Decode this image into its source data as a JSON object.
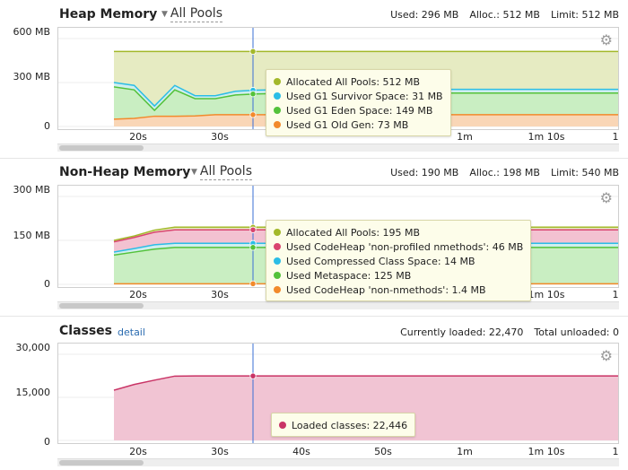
{
  "colors": {
    "allocated": "#a3b82a",
    "survivor": "#2bbde6",
    "eden": "#53c23a",
    "oldgen": "#f28a2b",
    "codeheap_profiled": "#d9446f",
    "compressed_class": "#2bbde6",
    "metaspace": "#53c23a",
    "codeheap_nonmethods": "#f28a2b",
    "classes": "#c93466",
    "crosshair": "#3a6fd6"
  },
  "x_axis_ticks": [
    "20s",
    "30s",
    "40s",
    "50s",
    "1m",
    "1m 10s",
    "1"
  ],
  "heap": {
    "title": "Heap Memory",
    "pool": "All Pools",
    "used": "Used: 296 MB",
    "alloc": "Alloc.: 512 MB",
    "limit": "Limit: 512 MB",
    "yticks": [
      "600 MB",
      "300 MB",
      "0"
    ],
    "tooltip": [
      {
        "label": "Allocated All Pools: 512 MB",
        "color": "#a3b82a"
      },
      {
        "label": "Used G1 Survivor Space: 31 MB",
        "color": "#2bbde6"
      },
      {
        "label": "Used G1 Eden Space: 149 MB",
        "color": "#53c23a"
      },
      {
        "label": "Used G1 Old Gen: 73 MB",
        "color": "#f28a2b"
      }
    ]
  },
  "nonheap": {
    "title": "Non-Heap Memory",
    "pool": "All Pools",
    "used": "Used: 190 MB",
    "alloc": "Alloc.: 198 MB",
    "limit": "Limit: 540 MB",
    "yticks": [
      "300 MB",
      "150 MB",
      "0"
    ],
    "tooltip": [
      {
        "label": "Allocated All Pools: 195 MB",
        "color": "#a3b82a"
      },
      {
        "label": "Used CodeHeap 'non-profiled nmethods': 46 MB",
        "color": "#d9446f"
      },
      {
        "label": "Used Compressed Class Space: 14 MB",
        "color": "#2bbde6"
      },
      {
        "label": "Used Metaspace: 125 MB",
        "color": "#53c23a"
      },
      {
        "label": "Used CodeHeap 'non-nmethods': 1.4 MB",
        "color": "#f28a2b"
      }
    ]
  },
  "classes": {
    "title": "Classes",
    "detail_link": "detail",
    "currently_loaded": "Currently loaded: 22,470",
    "total_unloaded": "Total unloaded: 0",
    "yticks": [
      "30,000",
      "15,000",
      "0"
    ],
    "tooltip": [
      {
        "label": "Loaded classes: 22,446",
        "color": "#c93466"
      }
    ]
  },
  "chart_data": [
    {
      "type": "area",
      "title": "Heap Memory",
      "ylabel": "MB",
      "ylim": [
        0,
        600
      ],
      "x": [
        0,
        1,
        2,
        3,
        4,
        5,
        6,
        7,
        8,
        9,
        10,
        11,
        12,
        13,
        14,
        15,
        16,
        17,
        18,
        19,
        20,
        21,
        22,
        23,
        24,
        25
      ],
      "series": [
        {
          "name": "Allocated All Pools",
          "values": [
            512,
            512,
            512,
            512,
            512,
            512,
            512,
            512,
            512,
            512,
            512,
            512,
            512,
            512,
            512,
            512,
            512,
            512,
            512,
            512,
            512,
            512,
            512,
            512,
            512,
            512
          ]
        },
        {
          "name": "Used G1 Survivor Space",
          "values": [
            300,
            280,
            140,
            280,
            210,
            210,
            240,
            248,
            250,
            252,
            252,
            253,
            253,
            253,
            253,
            253,
            253,
            253,
            253,
            253,
            253,
            253,
            253,
            253,
            253,
            253
          ]
        },
        {
          "name": "Used G1 Eden Space",
          "values": [
            270,
            250,
            110,
            250,
            190,
            190,
            215,
            222,
            225,
            227,
            228,
            228,
            228,
            228,
            228,
            228,
            228,
            228,
            228,
            228,
            228,
            228,
            228,
            228,
            228,
            228
          ]
        },
        {
          "name": "Used G1 Old Gen",
          "values": [
            50,
            55,
            70,
            70,
            72,
            80,
            80,
            80,
            80,
            80,
            80,
            80,
            80,
            80,
            80,
            80,
            80,
            80,
            80,
            80,
            80,
            80,
            80,
            80,
            80,
            80
          ]
        }
      ]
    },
    {
      "type": "area",
      "title": "Non-Heap Memory",
      "ylabel": "MB",
      "ylim": [
        0,
        300
      ],
      "x": [
        0,
        1,
        2,
        3,
        4,
        5,
        6,
        7,
        8,
        9,
        10,
        11,
        12,
        13,
        14,
        15,
        16,
        17,
        18,
        19,
        20,
        21,
        22,
        23,
        24,
        25
      ],
      "series": [
        {
          "name": "Allocated All Pools",
          "values": [
            150,
            165,
            185,
            195,
            195,
            195,
            195,
            195,
            195,
            195,
            195,
            195,
            195,
            195,
            195,
            195,
            195,
            195,
            195,
            195,
            195,
            195,
            195,
            195,
            195,
            195
          ]
        },
        {
          "name": "Used CodeHeap 'non-profiled nmethods'",
          "values": [
            145,
            160,
            178,
            186,
            186,
            186,
            186,
            186,
            186,
            186,
            186,
            186,
            186,
            186,
            186,
            186,
            186,
            186,
            186,
            186,
            186,
            186,
            186,
            186,
            186,
            186
          ]
        },
        {
          "name": "Used Compressed Class Space",
          "values": [
            110,
            122,
            135,
            140,
            140,
            140,
            140,
            140,
            140,
            140,
            140,
            140,
            140,
            140,
            140,
            140,
            140,
            140,
            140,
            140,
            140,
            140,
            140,
            140,
            140,
            140
          ]
        },
        {
          "name": "Used Metaspace",
          "values": [
            100,
            110,
            120,
            126,
            126,
            126,
            126,
            126,
            126,
            126,
            126,
            126,
            126,
            126,
            126,
            126,
            126,
            126,
            126,
            126,
            126,
            126,
            126,
            126,
            126,
            126
          ]
        },
        {
          "name": "Used CodeHeap 'non-nmethods'",
          "values": [
            2,
            2,
            2,
            2,
            2,
            2,
            2,
            2,
            2,
            2,
            2,
            2,
            2,
            2,
            2,
            2,
            2,
            2,
            2,
            2,
            2,
            2,
            2,
            2,
            2,
            2
          ]
        }
      ]
    },
    {
      "type": "area",
      "title": "Classes",
      "ylim": [
        0,
        30000
      ],
      "x": [
        0,
        1,
        2,
        3,
        4,
        5,
        6,
        7,
        8,
        9,
        10,
        11,
        12,
        13,
        14,
        15,
        16,
        17,
        18,
        19,
        20,
        21,
        22,
        23,
        24,
        25
      ],
      "series": [
        {
          "name": "Loaded classes",
          "values": [
            17500,
            19500,
            21000,
            22400,
            22446,
            22446,
            22446,
            22446,
            22446,
            22446,
            22446,
            22446,
            22446,
            22446,
            22446,
            22446,
            22446,
            22446,
            22446,
            22446,
            22446,
            22446,
            22446,
            22446,
            22446,
            22470
          ]
        }
      ]
    }
  ]
}
